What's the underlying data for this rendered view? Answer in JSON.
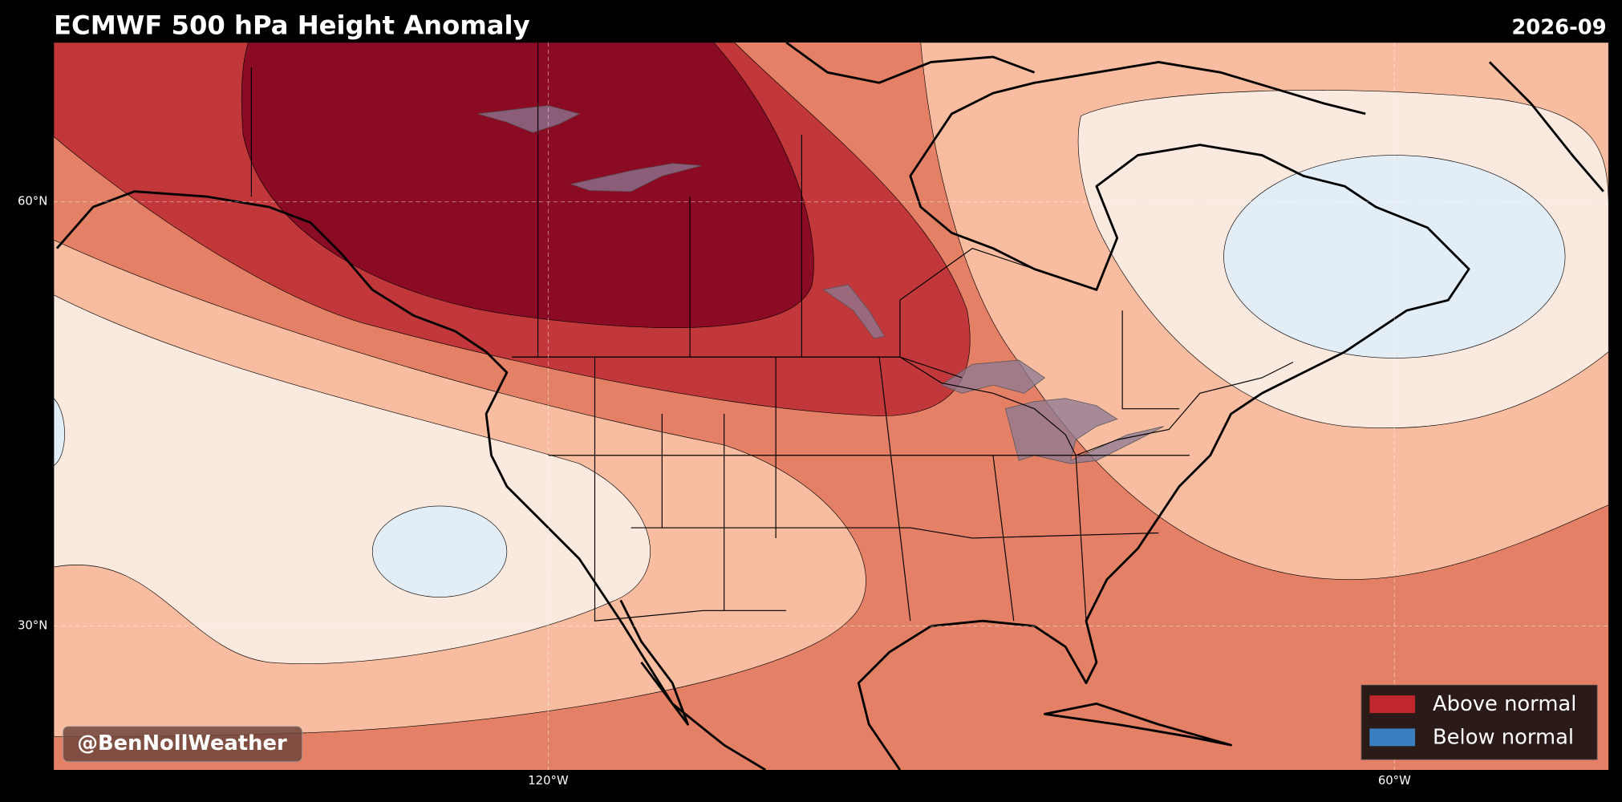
{
  "header": {
    "title": "ECMWF 500 hPa Height Anomaly",
    "date": "2026-09"
  },
  "axes": {
    "lat_labels": [
      "60°N",
      "30°N"
    ],
    "lon_labels": [
      "120°W",
      "60°W"
    ]
  },
  "legend": {
    "items": [
      {
        "label": "Above normal",
        "color": "#c0272d"
      },
      {
        "label": "Below normal",
        "color": "#3a7fc0"
      }
    ]
  },
  "credit": "@BenNollWeather"
}
